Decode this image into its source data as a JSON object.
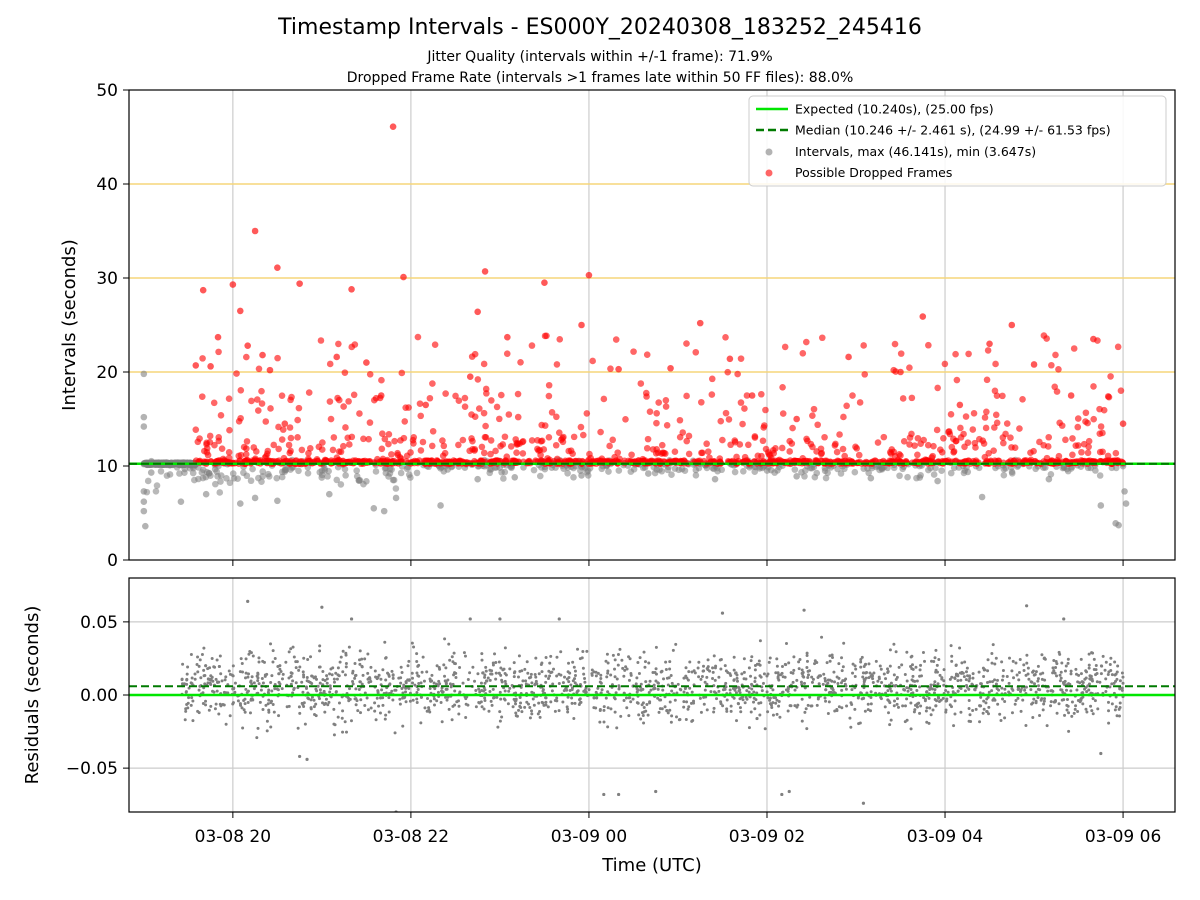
{
  "titles": {
    "main": "Timestamp Intervals - ES000Y_20240308_183252_245416",
    "sub1": "Jitter Quality (intervals within +/-1 frame): 71.9%",
    "sub2": "Dropped Frame Rate (intervals >1 frames late within 50 FF files): 88.0%"
  },
  "colors": {
    "expected": "#00e600",
    "median": "#007a00",
    "intervals": "#808080",
    "dropped": "#ff0000",
    "threshold_lines": "#f5d67a",
    "grid": "#cccccc"
  },
  "chart_data": [
    {
      "type": "scatter",
      "title": "Timestamp Intervals - ES000Y_20240308_183252_245416",
      "xlabel": "",
      "ylabel": "Intervals (seconds)",
      "xlim": [
        "03-08 18:50",
        "03-09 06:35"
      ],
      "ylim": [
        0,
        50
      ],
      "yticks": [
        0,
        10,
        20,
        30,
        40,
        50
      ],
      "xticks": [
        "03-08 20",
        "03-08 22",
        "03-09 00",
        "03-09 02",
        "03-09 04",
        "03-09 06"
      ],
      "grid": true,
      "legend_position": "upper right",
      "reference_lines": {
        "expected": 10.24,
        "median": 10.246,
        "thresholds": [
          20,
          30,
          40
        ]
      },
      "legend": [
        "Expected (10.240s), (25.00 fps)",
        "Median (10.246 +/- 2.461 s), (24.99 +/- 61.53 fps)",
        "Intervals, max (46.141s), min (3.647s)",
        "Possible Dropped Frames"
      ],
      "series": [
        {
          "name": "Intervals, max (46.141s), min (3.647s)",
          "x": [
            "03-08 19:00",
            "03-08 19:00",
            "03-08 19:00",
            "03-08 19:00",
            "03-08 19:00",
            "03-08 19:00",
            "03-08 19:00",
            "03-08 19:01",
            "03-08 19:05",
            "03-08 19:25",
            "03-08 19:42",
            "03-08 20:05",
            "03-08 20:15",
            "03-08 20:30",
            "03-08 21:05",
            "03-08 21:35",
            "03-08 21:42",
            "03-08 21:50",
            "03-08 22:20",
            "03-08 22:45",
            "03-08 23:10",
            "03-08 23:55",
            "03-09 00:40",
            "03-09 01:25",
            "03-09 02:20",
            "03-09 03:10",
            "03-09 03:55",
            "03-09 04:25",
            "03-09 05:10",
            "03-09 05:45",
            "03-09 05:55",
            "03-09 05:57",
            "03-09 06:00",
            "03-09 06:01",
            "03-09 06:02"
          ],
          "y": [
            19.8,
            15.2,
            14.2,
            10.2,
            7.3,
            6.2,
            5.2,
            3.6,
            9.3,
            6.2,
            7.0,
            6.0,
            6.6,
            6.3,
            7.0,
            5.5,
            5.2,
            6.6,
            5.8,
            8.6,
            8.8,
            9.0,
            9.2,
            8.6,
            8.9,
            8.7,
            8.4,
            6.7,
            8.6,
            5.8,
            3.9,
            3.7,
            10.2,
            7.3,
            6.0
          ]
        },
        {
          "name": "Possible Dropped Frames",
          "x": [
            "03-08 19:35",
            "03-08 19:40",
            "03-08 19:45",
            "03-08 19:50",
            "03-08 20:00",
            "03-08 20:05",
            "03-08 20:10",
            "03-08 20:15",
            "03-08 20:20",
            "03-08 20:25",
            "03-08 20:30",
            "03-08 20:35",
            "03-08 20:45",
            "03-08 21:10",
            "03-08 21:20",
            "03-08 21:30",
            "03-08 21:40",
            "03-08 21:48",
            "03-08 21:55",
            "03-08 22:10",
            "03-08 22:40",
            "03-08 22:45",
            "03-08 22:50",
            "03-08 23:05",
            "03-08 23:30",
            "03-08 23:55",
            "03-09 00:00",
            "03-09 00:20",
            "03-09 00:55",
            "03-09 01:15",
            "03-09 01:35",
            "03-09 01:50",
            "03-09 02:20",
            "03-09 02:55",
            "03-09 03:30",
            "03-09 03:45",
            "03-09 04:10",
            "03-09 04:30",
            "03-09 04:45",
            "03-09 05:00",
            "03-09 05:25",
            "03-09 05:40",
            "03-09 05:50",
            "03-09 06:00"
          ],
          "y": [
            20.7,
            28.7,
            20.6,
            23.7,
            29.3,
            26.5,
            22.8,
            35.0,
            21.8,
            20.2,
            31.1,
            14.5,
            29.4,
            21.6,
            28.8,
            21.0,
            17.5,
            46.1,
            30.1,
            16.5,
            19.5,
            26.4,
            30.7,
            23.7,
            29.5,
            25.0,
            30.3,
            20.3,
            20.4,
            25.2,
            21.4,
            17.5,
            15.0,
            21.6,
            20.0,
            25.9,
            16.5,
            23.0,
            25.0,
            20.8,
            17.5,
            23.5,
            17.4,
            14.5
          ]
        }
      ]
    },
    {
      "type": "scatter",
      "title": "",
      "xlabel": "Time (UTC)",
      "ylabel": "Residuals (seconds)",
      "xlim": [
        "03-08 18:50",
        "03-09 06:35"
      ],
      "ylim": [
        -0.08,
        0.08
      ],
      "yticks": [
        0.05,
        0.0,
        -0.05
      ],
      "ytick_labels": [
        "0.05",
        "0.00",
        "−0.05"
      ],
      "xticks": [
        "03-08 20",
        "03-08 22",
        "03-09 00",
        "03-09 02",
        "03-09 04",
        "03-09 06"
      ],
      "grid": true,
      "reference_lines": {
        "expected": 0.0,
        "median": 0.006
      },
      "series": [
        {
          "name": "Residuals",
          "x": [
            "03-08 20:10",
            "03-08 20:45",
            "03-08 20:50",
            "03-08 21:00",
            "03-08 21:20",
            "03-08 22:40",
            "03-08 23:00",
            "03-08 21:50",
            "03-08 23:40",
            "03-09 00:10",
            "03-09 00:20",
            "03-09 00:45",
            "03-09 01:30",
            "03-09 02:10",
            "03-09 02:15",
            "03-09 02:25",
            "03-09 03:05",
            "03-09 04:55",
            "03-09 05:20",
            "03-09 05:45"
          ],
          "y": [
            0.064,
            -0.042,
            -0.044,
            0.06,
            0.052,
            0.052,
            0.052,
            -0.08,
            0.052,
            -0.068,
            -0.068,
            -0.066,
            0.056,
            -0.068,
            -0.066,
            0.058,
            -0.074,
            0.061,
            0.052,
            -0.04
          ]
        }
      ]
    }
  ]
}
